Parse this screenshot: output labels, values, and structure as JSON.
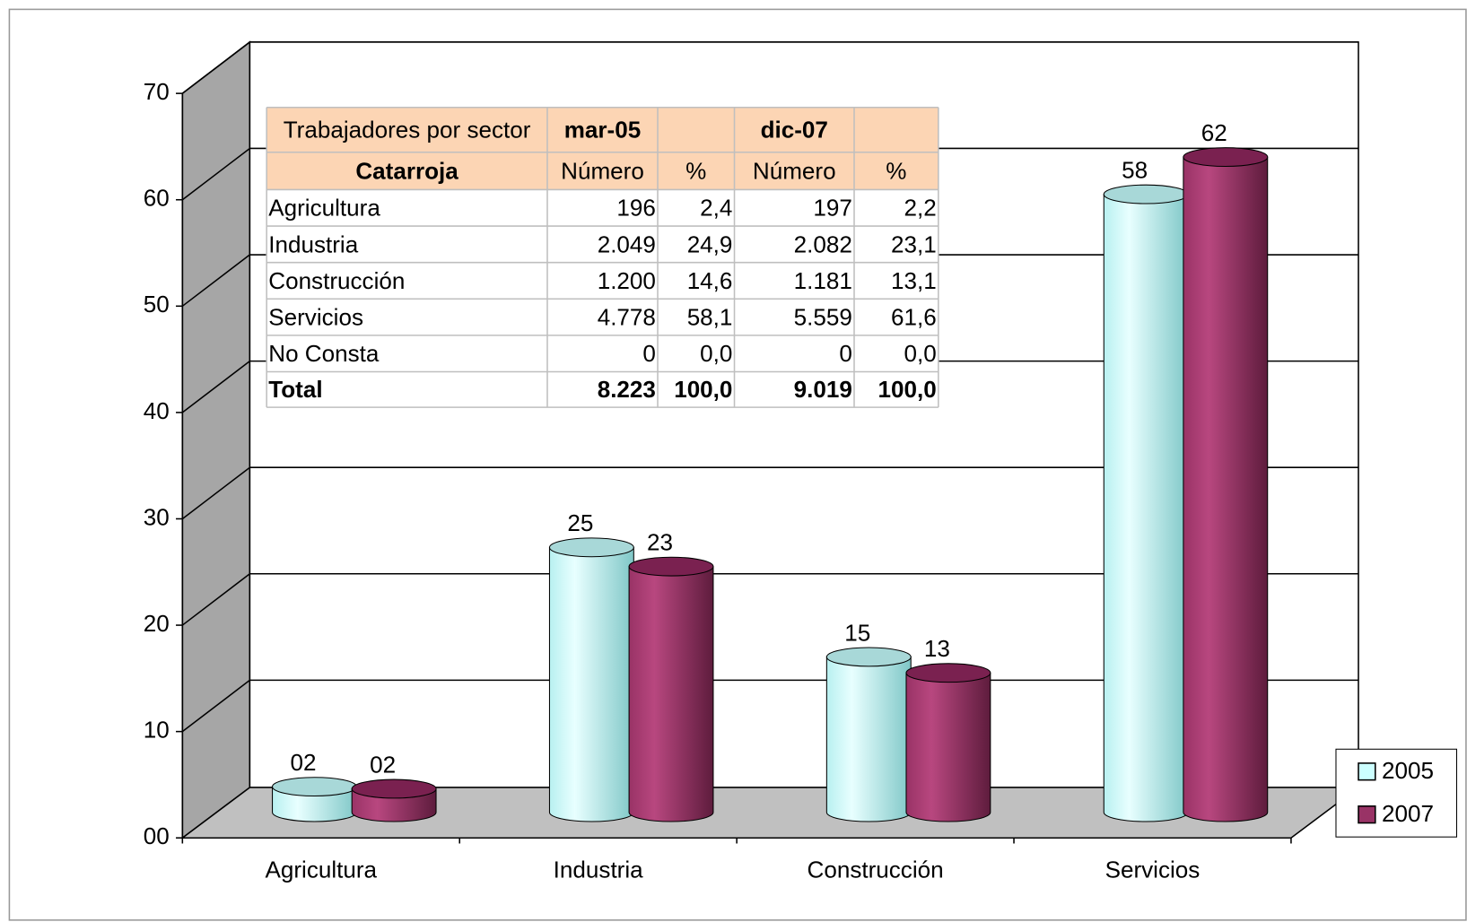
{
  "chart_data": {
    "type": "bar3d",
    "categories": [
      "Agricultura",
      "Industria",
      "Construcción",
      "Servicios"
    ],
    "series": [
      {
        "name": "2005",
        "color": "#ccffff",
        "values": [
          2.4,
          24.9,
          14.6,
          58.1
        ],
        "value_labels": [
          "02",
          "25",
          "15",
          "58"
        ]
      },
      {
        "name": "2007",
        "color": "#993366",
        "values": [
          2.2,
          23.1,
          13.1,
          61.6
        ],
        "value_labels": [
          "02",
          "23",
          "13",
          "62"
        ]
      }
    ],
    "ylim": [
      0,
      70
    ],
    "yticks": [
      {
        "value": 0,
        "label": "00"
      },
      10,
      20,
      30,
      40,
      50,
      60,
      70
    ],
    "grid": true,
    "legend": "right"
  },
  "table": {
    "title": "Trabajadores por sector",
    "periods": [
      "mar-05",
      "dic-07"
    ],
    "subheader": [
      "Catarroja",
      "Número",
      "%",
      "Número",
      "%"
    ],
    "rows": [
      [
        "Agricultura",
        "196",
        "2,4",
        "197",
        "2,2"
      ],
      [
        "Industria",
        "2.049",
        "24,9",
        "2.082",
        "23,1"
      ],
      [
        "Construcción",
        "1.200",
        "14,6",
        "1.181",
        "13,1"
      ],
      [
        "Servicios",
        "4.778",
        "58,1",
        "5.559",
        "61,6"
      ],
      [
        "No Consta",
        "0",
        "0,0",
        "0",
        "0,0"
      ]
    ],
    "total": [
      "Total",
      "8.223",
      "100,0",
      "9.019",
      "100,0"
    ]
  }
}
